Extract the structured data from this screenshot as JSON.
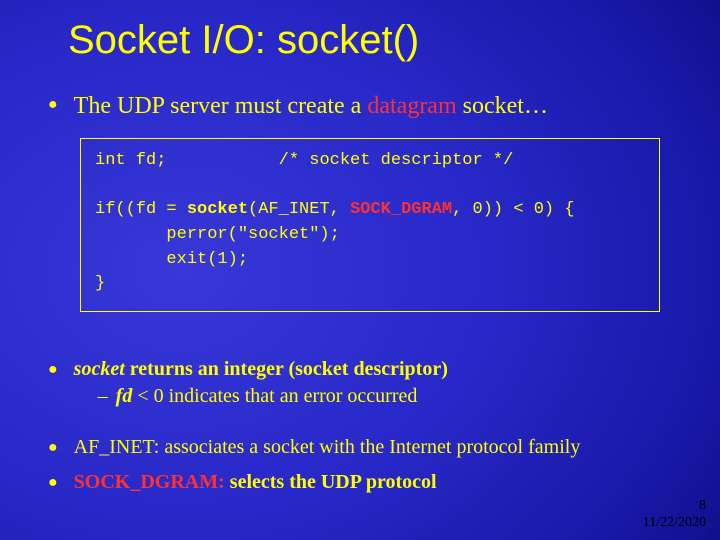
{
  "title": "Socket I/O: socket()",
  "bullets": {
    "b1_pre": "The UDP server must create a ",
    "b1_hl": "datagram",
    "b1_post": " socket…",
    "b2_pre_italic": "socket",
    "b2_rest": " returns an integer (socket ",
    "b2_desc": "descriptor",
    "b2_close": ")",
    "b2_sub_pre": "fd",
    "b2_sub_rest": " < 0 indicates that an error occurred",
    "b3": "AF_INET: associates a socket with the Internet protocol family",
    "b4_hl": "SOCK_DGRAM:",
    "b4_rest": " selects the UDP protocol"
  },
  "code": {
    "line1a": "int fd;",
    "line1b": "/* socket descriptor */",
    "line3a": "if((fd = ",
    "line3b": "socket",
    "line3c": "(AF_INET, ",
    "line3d": "SOCK_DGRAM",
    "line3e": ", 0)) < 0) {",
    "line4": "       perror(\"socket\");",
    "line5": "       exit(1);",
    "line6": "}",
    "colors": {
      "text": "#ffff00",
      "highlight": "#ff3030",
      "border": "#ffff00"
    }
  },
  "footer": {
    "page": "8",
    "date": "11/22/2020"
  },
  "style": {
    "background_gradient": [
      "#3838d8",
      "#2828c8",
      "#1818a8",
      "#0a0a78",
      "#050550"
    ],
    "title_color": "#ffff00",
    "bullet_color": "#ffff00"
  }
}
